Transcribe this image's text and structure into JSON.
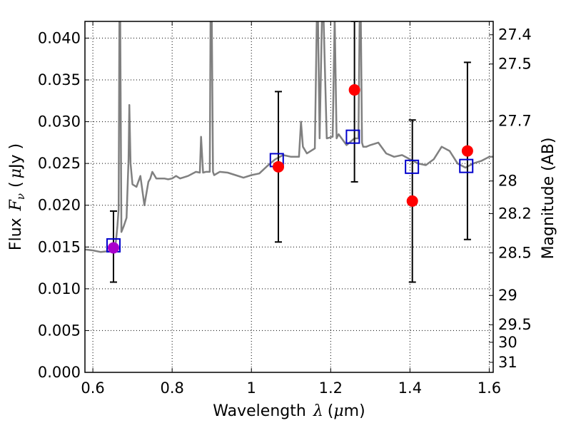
{
  "chart_data": {
    "type": "scatter",
    "xlabel": "Wavelength",
    "xlabel_symbol": "λ",
    "xlabel_unit_open": "(",
    "xlabel_unit_mu": "μ",
    "xlabel_unit_rest": "m)",
    "ylabel": "Flux",
    "ylabel_symbol": "F",
    "ylabel_subscript": "ν",
    "ylabel_unit_open": "(",
    "ylabel_unit_mu": "μ",
    "ylabel_unit_rest": "Jy )",
    "y2label": "Magnitude (AB)",
    "xlim": [
      0.58,
      1.61
    ],
    "ylim": [
      0.0,
      0.042
    ],
    "grid": true,
    "x_ticks": [
      0.6,
      0.8,
      1.0,
      1.2,
      1.4,
      1.6
    ],
    "x_tick_labels": [
      "0.6",
      "0.8",
      "1",
      "1.2",
      "1.4",
      "1.6"
    ],
    "y_ticks": [
      0.0,
      0.005,
      0.01,
      0.015,
      0.02,
      0.025,
      0.03,
      0.035,
      0.04
    ],
    "y_tick_labels": [
      "0.000",
      "0.005",
      "0.010",
      "0.015",
      "0.020",
      "0.025",
      "0.030",
      "0.035",
      "0.040"
    ],
    "mag_ticks": [
      {
        "label": "27.4",
        "flux": 0.0404
      },
      {
        "label": "27.5",
        "flux": 0.0369
      },
      {
        "label": "27.7",
        "flux": 0.0301
      },
      {
        "label": "28",
        "flux": 0.0229
      },
      {
        "label": "28.2",
        "flux": 0.019
      },
      {
        "label": "28.5",
        "flux": 0.0143
      },
      {
        "label": "29",
        "flux": 0.0092
      },
      {
        "label": "29.5",
        "flux": 0.0057
      },
      {
        "label": "30",
        "flux": 0.0036
      },
      {
        "label": "31",
        "flux": 0.0012
      }
    ],
    "colors": {
      "spectrum": "#808080",
      "model_squares": "#0000cc",
      "observed_points": "#ff0000",
      "overlap_point": "#aa00cc",
      "error_bars": "#000000",
      "grid": "#000000"
    },
    "spectrum": {
      "x": [
        0.58,
        0.6,
        0.62,
        0.64,
        0.655,
        0.658,
        0.662,
        0.665,
        0.667,
        0.669,
        0.672,
        0.678,
        0.685,
        0.69,
        0.692,
        0.695,
        0.7,
        0.71,
        0.72,
        0.73,
        0.74,
        0.745,
        0.75,
        0.76,
        0.78,
        0.79,
        0.8,
        0.81,
        0.82,
        0.84,
        0.86,
        0.87,
        0.873,
        0.878,
        0.885,
        0.895,
        0.897,
        0.9,
        0.903,
        0.906,
        0.92,
        0.94,
        0.96,
        0.98,
        1.0,
        1.02,
        1.04,
        1.06,
        1.08,
        1.1,
        1.12,
        1.125,
        1.13,
        1.14,
        1.16,
        1.165,
        1.168,
        1.172,
        1.178,
        1.182,
        1.19,
        1.205,
        1.21,
        1.215,
        1.22,
        1.24,
        1.26,
        1.27,
        1.273,
        1.276,
        1.279,
        1.282,
        1.29,
        1.3,
        1.32,
        1.34,
        1.36,
        1.38,
        1.4,
        1.42,
        1.44,
        1.46,
        1.48,
        1.5,
        1.52,
        1.54,
        1.56,
        1.58,
        1.6,
        1.61
      ],
      "y": [
        0.0147,
        0.0146,
        0.0144,
        0.0145,
        0.0148,
        0.0156,
        0.0175,
        0.0195,
        0.0425,
        0.0425,
        0.0168,
        0.0175,
        0.0185,
        0.0255,
        0.032,
        0.025,
        0.0225,
        0.0222,
        0.0235,
        0.02,
        0.0228,
        0.0232,
        0.024,
        0.0232,
        0.0232,
        0.0231,
        0.0232,
        0.0235,
        0.0232,
        0.0235,
        0.024,
        0.0239,
        0.0282,
        0.0239,
        0.024,
        0.024,
        0.0425,
        0.0425,
        0.024,
        0.0236,
        0.024,
        0.0239,
        0.0236,
        0.0233,
        0.0236,
        0.0238,
        0.0247,
        0.0255,
        0.026,
        0.0258,
        0.0258,
        0.03,
        0.027,
        0.0262,
        0.0268,
        0.0425,
        0.0425,
        0.028,
        0.0425,
        0.0425,
        0.028,
        0.0282,
        0.0425,
        0.028,
        0.0285,
        0.0272,
        0.028,
        0.028,
        0.0425,
        0.0425,
        0.0275,
        0.027,
        0.027,
        0.0272,
        0.0275,
        0.0262,
        0.0258,
        0.026,
        0.0255,
        0.025,
        0.0248,
        0.0255,
        0.027,
        0.0265,
        0.025,
        0.0245,
        0.025,
        0.0253,
        0.0258,
        0.0258
      ]
    },
    "model_points": {
      "x": [
        0.652,
        1.064,
        1.256,
        1.405,
        1.542
      ],
      "y": [
        0.0152,
        0.0254,
        0.0282,
        0.0246,
        0.0247
      ]
    },
    "observed_points": {
      "x": [
        0.652,
        1.068,
        1.26,
        1.406,
        1.545
      ],
      "y": [
        0.0149,
        0.0246,
        0.0338,
        0.0205,
        0.0265
      ],
      "err_low": [
        0.0108,
        0.0156,
        0.0228,
        0.0108,
        0.0159
      ],
      "err_high": [
        0.0193,
        0.0336,
        0.042,
        0.0302,
        0.0371
      ]
    }
  }
}
